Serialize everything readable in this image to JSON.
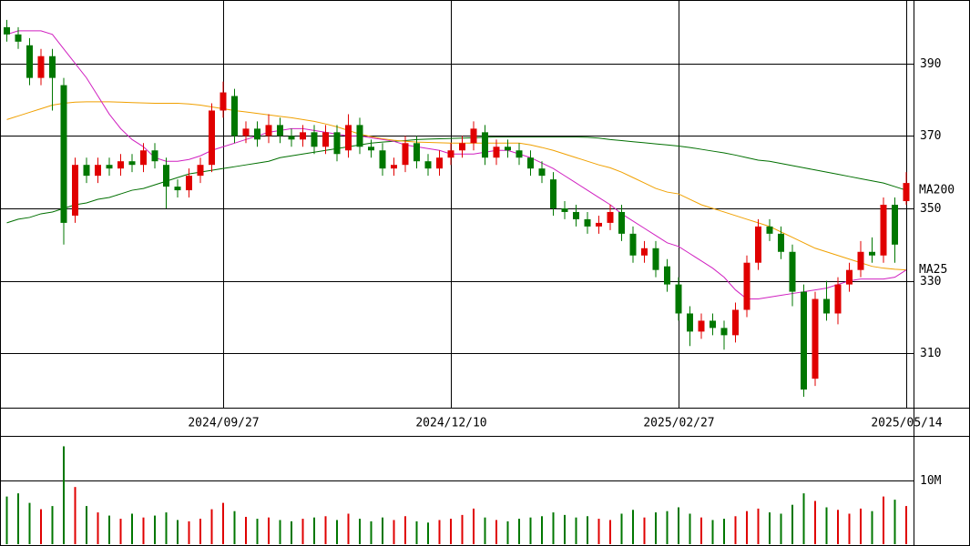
{
  "chart_data": {
    "type": "candlestick",
    "categories": [
      null,
      null,
      null,
      null,
      null,
      null,
      null,
      null,
      null,
      null,
      null,
      null,
      null,
      null,
      null,
      null,
      null,
      null,
      null,
      "2024/09/27",
      null,
      null,
      null,
      null,
      null,
      null,
      null,
      null,
      null,
      null,
      null,
      null,
      null,
      null,
      null,
      null,
      null,
      null,
      null,
      "2024/12/10",
      null,
      null,
      null,
      null,
      null,
      null,
      null,
      null,
      null,
      null,
      null,
      null,
      null,
      null,
      null,
      null,
      null,
      null,
      null,
      "2025/02/27",
      null,
      null,
      null,
      null,
      null,
      null,
      null,
      null,
      null,
      null,
      null,
      null,
      null,
      null,
      null,
      null,
      null,
      null,
      null,
      "2025/05/14"
    ],
    "open": [
      400,
      398,
      395,
      386,
      392,
      384,
      348,
      362,
      359,
      362,
      361,
      363,
      362,
      366,
      362,
      356,
      355,
      359,
      362,
      377,
      381,
      370,
      372,
      370,
      373,
      370,
      369,
      371,
      367,
      371,
      366,
      373,
      367,
      366,
      361,
      362,
      368,
      363,
      361,
      364,
      366,
      368,
      371,
      364,
      367,
      366,
      364,
      361,
      358,
      350,
      349,
      347,
      345,
      346,
      349,
      343,
      337,
      339,
      334,
      329,
      321,
      316,
      319,
      317,
      315,
      322,
      335,
      345,
      343,
      338,
      327,
      303,
      325,
      321,
      329,
      333,
      338,
      337,
      351,
      352
    ],
    "high": [
      402,
      400,
      397,
      394,
      394,
      386,
      364,
      364,
      364,
      364,
      365,
      365,
      368,
      368,
      364,
      358,
      361,
      364,
      379,
      385,
      383,
      374,
      374,
      376,
      375,
      372,
      373,
      373,
      373,
      373,
      376,
      375,
      369,
      368,
      364,
      370,
      370,
      365,
      366,
      368,
      370,
      374,
      373,
      369,
      369,
      368,
      366,
      363,
      360,
      352,
      351,
      349,
      348,
      351,
      351,
      345,
      341,
      341,
      336,
      331,
      323,
      321,
      321,
      319,
      324,
      337,
      347,
      347,
      345,
      340,
      329,
      327,
      330,
      331,
      335,
      341,
      342,
      353,
      353,
      360
    ],
    "low": [
      396,
      394,
      384,
      384,
      377,
      340,
      346,
      357,
      357,
      359,
      359,
      360,
      360,
      361,
      350,
      353,
      353,
      357,
      360,
      375,
      368,
      368,
      367,
      368,
      368,
      367,
      367,
      365,
      365,
      363,
      364,
      365,
      364,
      359,
      359,
      360,
      361,
      359,
      359,
      362,
      364,
      366,
      362,
      362,
      364,
      362,
      359,
      357,
      348,
      347,
      345,
      343,
      343,
      344,
      341,
      335,
      335,
      331,
      327,
      319,
      312,
      314,
      315,
      311,
      313,
      320,
      333,
      341,
      336,
      323,
      298,
      301,
      319,
      318,
      327,
      331,
      335,
      335,
      335,
      351
    ],
    "close": [
      398,
      396,
      386,
      392,
      386,
      346,
      362,
      359,
      362,
      361,
      363,
      362,
      366,
      363,
      356,
      355,
      359,
      362,
      377,
      382,
      370,
      372,
      369,
      373,
      370,
      369,
      371,
      367,
      371,
      365,
      373,
      367,
      366,
      361,
      362,
      368,
      363,
      361,
      364,
      366,
      368,
      372,
      364,
      367,
      366,
      364,
      361,
      359,
      350,
      349,
      347,
      345,
      346,
      349,
      343,
      337,
      339,
      333,
      329,
      321,
      316,
      319,
      317,
      315,
      322,
      335,
      345,
      343,
      338,
      327,
      300,
      325,
      321,
      329,
      333,
      338,
      337,
      351,
      340,
      357
    ],
    "up_color": "#e00000",
    "down_color": "#007700",
    "series": [
      {
        "name": "MA200",
        "color": "#006f00",
        "values": [
          346,
          347,
          347.5,
          348.5,
          349,
          350,
          351,
          351.5,
          352.5,
          353,
          354,
          355,
          355.5,
          356.5,
          357.5,
          358.5,
          359.5,
          360,
          360.5,
          361,
          361.5,
          362,
          362.5,
          363,
          364,
          364.5,
          365,
          365.5,
          366,
          366.5,
          367,
          367.5,
          368,
          368.3,
          368.5,
          368.7,
          369,
          369.1,
          369.2,
          369.3,
          369.4,
          369.5,
          369.6,
          369.7,
          369.7,
          369.7,
          369.7,
          369.7,
          369.7,
          369.7,
          369.7,
          369.6,
          369.4,
          369,
          368.7,
          368.4,
          368.1,
          367.8,
          367.5,
          367.2,
          366.8,
          366.3,
          365.8,
          365.3,
          364.7,
          364,
          363.3,
          363,
          362.4,
          361.8,
          361.2,
          360.6,
          360,
          359.4,
          358.8,
          358.2,
          357.6,
          357,
          356,
          355
        ]
      },
      {
        "name": "MA25",
        "color": "#f0a000",
        "values": [
          374.5,
          375.5,
          376.5,
          377.5,
          378.5,
          379,
          379.3,
          379.4,
          379.4,
          379.4,
          379.3,
          379.2,
          379.1,
          379,
          379,
          379,
          378.8,
          378.5,
          378,
          377.5,
          377,
          376.6,
          376.2,
          375.8,
          375.4,
          375,
          374.5,
          374,
          373.3,
          372.5,
          371.5,
          370.5,
          369.8,
          369.2,
          368.8,
          368.5,
          368.3,
          368.2,
          368.1,
          368,
          368,
          368,
          368,
          368,
          368,
          368,
          367.5,
          366.8,
          366,
          365,
          364,
          363,
          362,
          361.2,
          360,
          358.5,
          357,
          355.5,
          354.5,
          354,
          352.5,
          351,
          350,
          349,
          348,
          347,
          346,
          345,
          343.5,
          342,
          340.5,
          339,
          338,
          337,
          336,
          335,
          334,
          333.5,
          333.2,
          333
        ]
      },
      {
        "color": "#d020c0",
        "values": [
          398,
          399,
          399,
          399,
          398,
          394,
          390,
          386,
          381,
          376,
          372,
          369,
          367,
          364,
          363,
          363,
          363.5,
          364.5,
          366,
          367,
          368,
          369,
          370,
          371,
          371.5,
          372,
          372,
          371.5,
          371,
          370.5,
          370,
          370,
          369.5,
          369,
          368.5,
          367.5,
          367,
          366.5,
          366,
          365,
          365,
          365,
          365.5,
          366,
          366,
          365,
          364,
          362.5,
          361,
          359,
          357,
          355,
          353,
          351,
          348.5,
          346.5,
          344.5,
          342.5,
          340.5,
          339.5,
          337.5,
          335.5,
          333.5,
          331,
          327.5,
          325,
          325,
          325.5,
          326,
          326.5,
          327,
          327.5,
          328,
          329,
          330,
          330.5,
          330.5,
          330.5,
          331,
          333
        ]
      }
    ],
    "ylim": [
      295,
      407.5
    ],
    "yticks": [
      310,
      330,
      350,
      370,
      390
    ],
    "grid": true,
    "volume": {
      "type": "bar",
      "values": [
        7500000,
        8000000,
        6500000,
        5500000,
        6000000,
        15400000,
        9000000,
        6000000,
        5000000,
        4500000,
        4000000,
        4800000,
        4200000,
        4500000,
        5000000,
        3800000,
        3600000,
        4000000,
        5500000,
        6500000,
        5200000,
        4300000,
        4000000,
        4200000,
        3800000,
        3600000,
        4000000,
        4200000,
        4400000,
        3800000,
        4800000,
        4000000,
        3600000,
        4200000,
        3800000,
        4400000,
        3600000,
        3400000,
        3800000,
        4000000,
        4600000,
        5600000,
        4200000,
        3800000,
        3600000,
        4000000,
        4200000,
        4400000,
        5000000,
        4600000,
        4200000,
        4400000,
        4000000,
        3800000,
        4800000,
        5400000,
        4200000,
        5000000,
        5200000,
        5800000,
        4800000,
        4200000,
        3800000,
        4000000,
        4400000,
        5200000,
        5600000,
        5000000,
        4800000,
        6200000,
        8000000,
        6800000,
        5800000,
        5400000,
        4800000,
        5600000,
        5200000,
        7500000,
        7000000,
        6000000
      ],
      "ylim": [
        0,
        16900000
      ],
      "yticks": [
        {
          "value": 10000000,
          "label": "10M"
        }
      ]
    }
  }
}
